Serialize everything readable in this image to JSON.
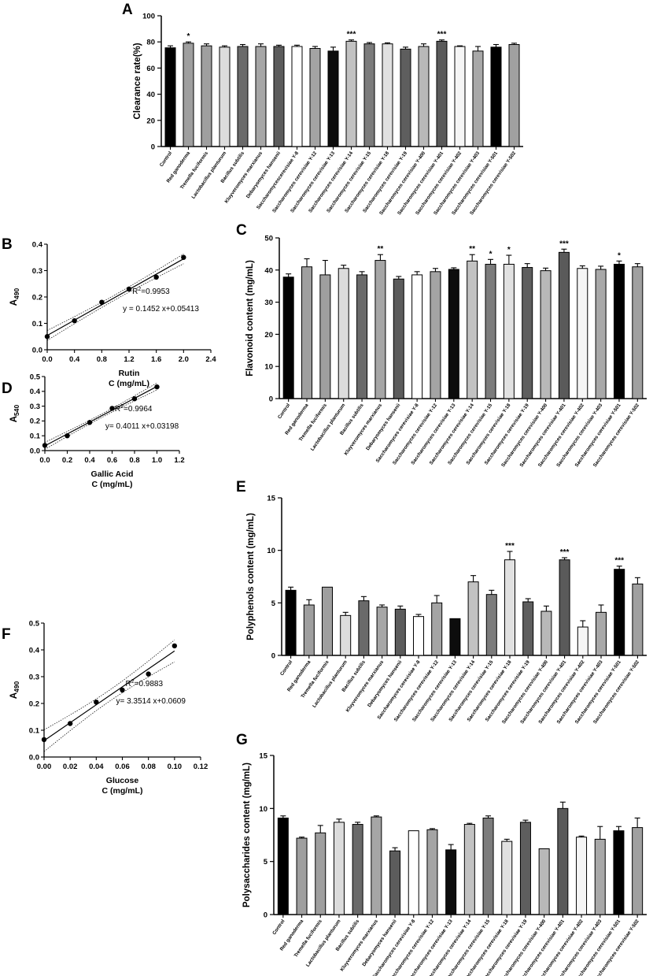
{
  "palette": {
    "Control": "#000000",
    "Red ganoderma": "#9f9f9f",
    "Tremella fuciformis": "#9f9f9f",
    "Lactobacillus planturum": "#dcdcdc",
    "Bacillus subtilis": "#6a6a6a",
    "Kluyveromyces marxianus": "#a6a6a6",
    "Debaryomyces hansenii": "#5c5c5c",
    "Saccharomyces cerevisiae Y-8": "#ffffff",
    "Saccharomyces cerevisiae Y-12": "#a4a4a4",
    "Saccharomyces cerevisiae Y-13": "#0d0d0d",
    "Saccharomyces cerevisiae Y-14": "#c2c2c2",
    "Saccharomyces cerevisiae Y-15": "#7c7c7c",
    "Saccharomyces cerevisiae Y-18": "#e1e1e1",
    "Saccharomyces cerevisiae Y-19": "#5e5e5e",
    "Saccharomyces cerevisiae Y-400": "#b8b8b8",
    "Saccharomyces cerevisiae Y-401": "#5a5a5a",
    "Saccharomyces cerevisiae Y-402": "#f5f5f5",
    "Saccharomyces cerevisiae Y-403": "#a8a8a8",
    "Saccharomyces cerevisiae Y-501": "#000000",
    "Saccharomyces cerevisiae Y-502": "#a0a0a0"
  },
  "chart_data": [
    {
      "id": "A",
      "type": "bar",
      "letter": "A",
      "ylabel": "Clearance rate(%)",
      "ylim": [
        0,
        100
      ],
      "yticks": [
        "0",
        "20",
        "40",
        "60",
        "80",
        "100"
      ],
      "categories": [
        "Control",
        "Red ganoderma",
        "Tremella fuciformis",
        "Lactobacillus planturum",
        "Bacillus subtilis",
        "Kluyveromyces marxianus",
        "Debaryomyces hansenii",
        "Saccharomycescerevisiae Y-8",
        "Saccharomyces cerevisiae Y-12",
        "Saccharomyces cerevisiae Y-13",
        "Saccharomyces cerevisiae Y-14",
        "Saccharomyces cerevisiae Y-15",
        "Saccharomyces cerevisiae Y-18",
        "Saccharomyces cerevisiae Y-19",
        "Saccharomyces cerevisiae Y-400",
        "Saccharomyces cerevisiae Y-401",
        "Saccharomyces cerevisiae Y-402",
        "Saccharomyces cerevisiae Y-403",
        "Saccharomyces cerevisiae Y-501",
        "Saccharomyces cerevisiae Y-502"
      ],
      "values": [
        75.5,
        79.0,
        77.0,
        76.0,
        76.5,
        76.5,
        76.5,
        76.5,
        75.0,
        73.0,
        80.5,
        78.5,
        78.5,
        74.5,
        76.5,
        80.5,
        76.5,
        73.0,
        76.0,
        78.0
      ],
      "errors": [
        1.5,
        1.0,
        1.5,
        1.0,
        1.5,
        2.0,
        1.0,
        1.0,
        1.5,
        3.0,
        1.0,
        1.0,
        0.8,
        1.5,
        2.0,
        1.0,
        0.5,
        3.5,
        2.0,
        1.0
      ],
      "significance": [
        "",
        "*",
        "",
        "",
        "",
        "",
        "",
        "",
        "",
        "",
        "***",
        "",
        "",
        "",
        "",
        "***",
        "",
        "",
        "",
        ""
      ]
    },
    {
      "id": "B",
      "type": "scatter",
      "letter": "B",
      "ylabel_main": "A",
      "ylabel_sub": "490",
      "xlabel_line1": "Rutin",
      "xlabel_line2": "C (mg/mL)",
      "xlim": [
        0,
        2.4
      ],
      "ylim": [
        0,
        0.4
      ],
      "xticks": [
        "0.0",
        "0.4",
        "0.8",
        "1.2",
        "1.6",
        "2.0",
        "2.4"
      ],
      "yticks": [
        "0.0",
        "0.1",
        "0.2",
        "0.3",
        "0.4"
      ],
      "x": [
        0.0,
        0.4,
        0.8,
        1.2,
        1.6,
        2.0
      ],
      "y": [
        0.05,
        0.11,
        0.18,
        0.23,
        0.275,
        0.35
      ],
      "slope": 0.1452,
      "intercept": 0.05413,
      "fit_xrange": [
        0,
        2.0
      ],
      "band": 0.016,
      "r2_label": "R",
      "r2_sup": "2",
      "r2_value": "=0.9953",
      "equation": "y = 0.1452 x+0.05413"
    },
    {
      "id": "C",
      "type": "bar",
      "letter": "C",
      "ylabel": "Flavonoid content (mg/mL)",
      "ylim": [
        0,
        50
      ],
      "yticks": [
        "0",
        "10",
        "20",
        "30",
        "40",
        "50"
      ],
      "categories": [
        "Control",
        "Red ganoderma",
        "Tremella fuciformis",
        "Lactobacillus planturum",
        "Bacillus subtilis",
        "Kluyveromyces marxianus",
        "Debaryomyces hansenii",
        "Saccharomyces cerevisiae Y-8",
        "Saccharomyces cerevisiae Y-12",
        "Saccharomyces cerevisiae Y-13",
        "Saccharomyces cerevisiae Y-14",
        "Saccharomyces cerevisiae Y-15",
        "Saccharomyces cerevisiae Y-18",
        "Saccharomyces cerevisiae Y-19",
        "Saccharomyces cerevisiae Y-400",
        "Saccharomyces cerevisiae Y-401",
        "Saccharomyces cerevisiae Y-402",
        "Saccharomyces cerevisiae Y-403",
        "Saccharomyces cerevisiae Y-501",
        "Saccharomyces cerevisiae Y-502"
      ],
      "values": [
        37.8,
        41.0,
        38.5,
        40.5,
        38.5,
        43.0,
        37.2,
        38.5,
        39.5,
        40.2,
        42.8,
        41.8,
        41.8,
        40.8,
        39.8,
        45.5,
        40.5,
        40.2,
        41.8,
        41.0
      ],
      "errors": [
        1.0,
        2.5,
        4.5,
        1.0,
        1.0,
        1.8,
        0.8,
        1.0,
        1.0,
        0.5,
        2.0,
        1.5,
        2.8,
        1.2,
        0.8,
        1.0,
        0.8,
        1.0,
        1.0,
        1.0
      ],
      "significance": [
        "",
        "",
        "",
        "",
        "",
        "**",
        "",
        "",
        "",
        "",
        "**",
        "*",
        "*",
        "",
        "",
        "***",
        "",
        "",
        "*",
        ""
      ]
    },
    {
      "id": "D",
      "type": "scatter",
      "letter": "D",
      "ylabel_main": "A",
      "ylabel_sub": "540",
      "xlabel_line1": "Gallic Acid",
      "xlabel_line2": "C (mg/mL)",
      "xlim": [
        0,
        1.2
      ],
      "ylim": [
        0,
        0.5
      ],
      "xticks": [
        "0.0",
        "0.2",
        "0.4",
        "0.6",
        "0.8",
        "1.0",
        "1.2"
      ],
      "yticks": [
        "0.0",
        "0.1",
        "0.2",
        "0.3",
        "0.4",
        "0.5"
      ],
      "x": [
        0.0,
        0.2,
        0.4,
        0.6,
        0.8,
        1.0
      ],
      "y": [
        0.035,
        0.1,
        0.19,
        0.285,
        0.35,
        0.43
      ],
      "slope": 0.4011,
      "intercept": 0.03198,
      "fit_xrange": [
        0,
        1.0
      ],
      "band": 0.02,
      "r2_label": "R",
      "r2_sup": "2",
      "r2_value": "=0.9964",
      "equation": "y= 0.4011 x+0.03198"
    },
    {
      "id": "E",
      "type": "bar",
      "letter": "E",
      "ylabel": "Polyphenols content (mg/mL)",
      "ylim": [
        0,
        15
      ],
      "yticks": [
        "0",
        "5",
        "10",
        "15"
      ],
      "categories": [
        "Control",
        "Red ganoderma",
        "Tremella fuciformis",
        "Lactobacillus planturum",
        "Bacillus subtilis",
        "Kluyveromyces marxianus",
        "Debaryomyces hansenii",
        "Saccharomyces cerevisiae Y-8",
        "Saccharomyces cerevisiae Y-12",
        "Saccharomyces cerevisiae Y-13",
        "Saccharomyces cerevisiae Y-14",
        "Saccharomyces cerevisiae Y-15",
        "Saccharomyces cerevisiae Y-18",
        "Saccharomyces cerevisiae Y-19",
        "Saccharomyces cerevisiae Y-400",
        "Saccharomyces cerevisiae Y-401",
        "Saccharomyces cerevisiae Y-402",
        "Saccharomyces cerevisiae Y-403",
        "Saccharomyces cerevisiae Y-501",
        "Saccharomyces cerevisiae Y-502"
      ],
      "values": [
        6.2,
        4.8,
        6.5,
        3.8,
        5.2,
        4.6,
        4.4,
        3.7,
        5.0,
        3.5,
        7.0,
        5.8,
        9.1,
        5.1,
        4.2,
        9.1,
        2.7,
        4.1,
        8.2,
        6.8
      ],
      "errors": [
        0.3,
        0.5,
        0.0,
        0.3,
        0.4,
        0.2,
        0.3,
        0.2,
        0.7,
        0.0,
        0.6,
        0.4,
        0.8,
        0.3,
        0.5,
        0.2,
        0.6,
        0.7,
        0.3,
        0.6
      ],
      "significance": [
        "",
        "",
        "",
        "",
        "",
        "",
        "",
        "",
        "",
        "",
        "",
        "",
        "***",
        "",
        "",
        "***",
        "",
        "",
        "***",
        ""
      ]
    },
    {
      "id": "F",
      "type": "scatter",
      "letter": "F",
      "ylabel_main": "A",
      "ylabel_sub": "490",
      "xlabel_line1": "Glucose",
      "xlabel_line2": "C (mg/mL)",
      "xlim": [
        0,
        0.12
      ],
      "ylim": [
        0,
        0.5
      ],
      "xticks": [
        "0.00",
        "0.02",
        "0.04",
        "0.06",
        "0.08",
        "0.10",
        "0.12"
      ],
      "yticks": [
        "0.0",
        "0.1",
        "0.2",
        "0.3",
        "0.4",
        "0.5"
      ],
      "x": [
        0.0,
        0.02,
        0.04,
        0.06,
        0.08,
        0.1
      ],
      "y": [
        0.065,
        0.125,
        0.205,
        0.25,
        0.31,
        0.415
      ],
      "slope": 3.3514,
      "intercept": 0.0609,
      "fit_xrange": [
        0,
        0.1
      ],
      "band": 0.035,
      "r2_label": "R",
      "r2_sup": "2",
      "r2_value": "=0.9883",
      "equation": "y= 3.3514 x+0.0609"
    },
    {
      "id": "G",
      "type": "bar",
      "letter": "G",
      "ylabel": "Polysaccharides content (mg/mL)",
      "ylim": [
        0,
        15
      ],
      "yticks": [
        "0",
        "5",
        "10",
        "15"
      ],
      "categories": [
        "Control",
        "Red ganoderma",
        "Tremella fuciformis",
        "Lactobacillus planturum",
        "Bacillus subtilis",
        "Kluyveromyces marxianus",
        "Debaryomyces hansenii",
        "Saccharomyces cerevisiae Y-8",
        "Saccharomyces cerevisiae Y-12",
        "Saccharomyces cerevisiae Y-13",
        "Saccharomyces cerevisiae Y-14",
        "Saccharomyces cerevisiae Y-15",
        "Saccharomyces cerevisiae Y-18",
        "Saccharomyces cerevisiae Y-19",
        "Saccharomyces cerevisiae Y-400",
        "Saccharomyces cerevisiae Y-401",
        "Saccharomyces cerevisiae Y-402",
        "Saccharomyces cerevisiae Y-403",
        "Saccharomyces cerevisiae Y-501",
        "Saccharomyces cerevisiae Y-502"
      ],
      "values": [
        9.1,
        7.2,
        7.7,
        8.7,
        8.5,
        9.2,
        6.0,
        7.9,
        8.0,
        6.1,
        8.5,
        9.1,
        6.9,
        8.7,
        6.2,
        10.0,
        7.3,
        7.1,
        7.9,
        8.2
      ],
      "errors": [
        0.2,
        0.1,
        0.7,
        0.3,
        0.2,
        0.1,
        0.3,
        0.0,
        0.1,
        0.5,
        0.1,
        0.2,
        0.2,
        0.2,
        0.0,
        0.6,
        0.1,
        1.2,
        0.4,
        0.9
      ],
      "significance": [
        "",
        "",
        "",
        "",
        "",
        "",
        "",
        "",
        "",
        "",
        "",
        "",
        "",
        "",
        "",
        "",
        "",
        "",
        "",
        ""
      ]
    }
  ]
}
